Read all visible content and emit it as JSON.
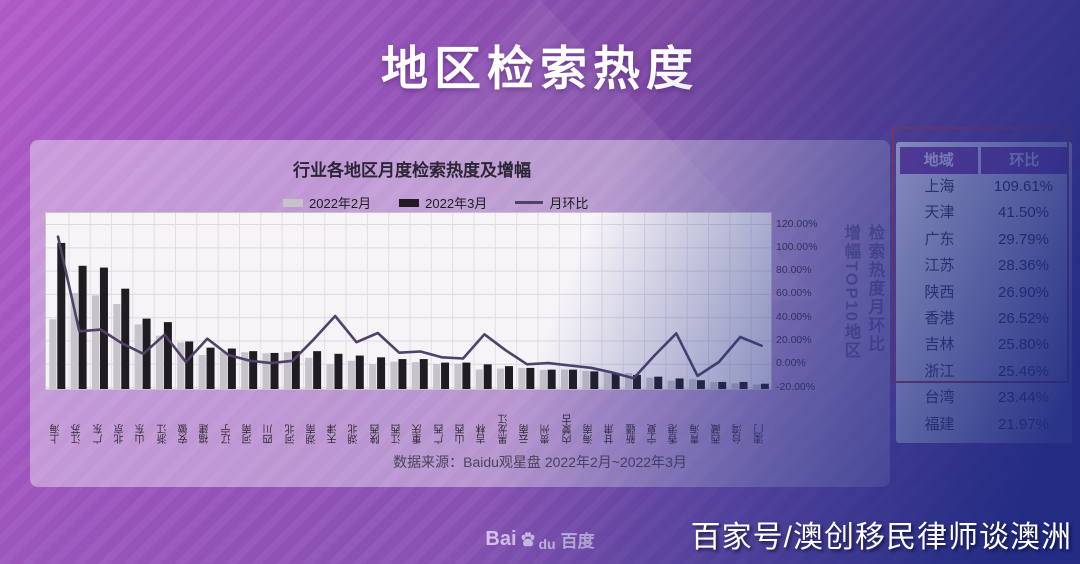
{
  "banner": {
    "title": "地区检索热度"
  },
  "chart": {
    "title": "行业各地区月度检索热度及增幅",
    "legend": [
      {
        "label": "2022年2月",
        "color": "#c7c3cb",
        "type": "bar"
      },
      {
        "label": "2022年3月",
        "color": "#201c22",
        "type": "bar"
      },
      {
        "label": "月环比",
        "color": "#4e4268",
        "type": "line"
      }
    ],
    "axis_caption_line1": "检索热度月环比",
    "axis_caption_line2": "增幅TOP10地区",
    "source": "数据来源：Baidu观星盘 2022年2月~2022年3月"
  },
  "chart_data": {
    "type": "bar+line (dual axis combo)",
    "title": "行业各地区月度检索热度及增幅",
    "categories": [
      "上海",
      "江苏",
      "广东",
      "北京",
      "山东",
      "浙江",
      "安徽",
      "福建",
      "辽宁",
      "河南",
      "四川",
      "河北",
      "湖南",
      "天津",
      "湖北",
      "陕西",
      "江西",
      "重庆",
      "广西",
      "山西",
      "吉林",
      "黑龙江",
      "云南",
      "贵州",
      "内蒙古",
      "海南",
      "甘肃",
      "新疆",
      "宁夏",
      "香港",
      "青海",
      "西藏",
      "台湾",
      "澳门"
    ],
    "series": [
      {
        "name": "2022年2月",
        "type": "bar",
        "color": "#c7c3cb",
        "axis": "left (unlabeled heat index, relative 0-100)",
        "values": [
          39.6,
          54.5,
          53.2,
          48.3,
          36.7,
          30.3,
          26.5,
          19.3,
          21.3,
          20.9,
          20.3,
          20.9,
          17.7,
          14.1,
          16,
          14.2,
          15.5,
          15.3,
          14.2,
          14.3,
          11.1,
          11.6,
          12,
          10.9,
          11.1,
          10.3,
          9.7,
          9.1,
          6.5,
          4.7,
          5.6,
          3.9,
          3.2,
          2.6
        ]
      },
      {
        "name": "2022年3月",
        "type": "bar",
        "color": "#201c22",
        "axis": "left (unlabeled heat index, relative 0-100)",
        "values": [
          83,
          70,
          69,
          57,
          40,
          38,
          27,
          23.5,
          23,
          21.5,
          20.5,
          21.5,
          21.5,
          20,
          19,
          18,
          17,
          17,
          15,
          15,
          14,
          13,
          12,
          11,
          11,
          10,
          9,
          8,
          7,
          6,
          5,
          4,
          4,
          3
        ]
      },
      {
        "name": "月环比",
        "type": "line",
        "color": "#4e4268",
        "axis": "right",
        "unit": "%",
        "values": [
          109.61,
          28.36,
          29.79,
          18,
          9,
          25.46,
          2,
          21.97,
          8,
          3,
          1,
          3,
          21.5,
          41.5,
          19,
          26.9,
          10,
          11,
          6,
          5,
          25.8,
          12,
          0,
          1,
          -1,
          -3,
          -7,
          -12,
          8,
          26.52,
          -10,
          2,
          23.44,
          16
        ]
      }
    ],
    "right_axis": {
      "min": -20,
      "max": 120,
      "ticks": [
        {
          "label": "120.00%",
          "value": 120
        },
        {
          "label": "100.00%",
          "value": 100
        },
        {
          "label": "80.00%",
          "value": 80
        },
        {
          "label": "60.00%",
          "value": 60
        },
        {
          "label": "40.00%",
          "value": 40
        },
        {
          "label": "20.00%",
          "value": 20
        },
        {
          "label": "0.00%",
          "value": 0
        },
        {
          "label": "-20.00%",
          "value": -20
        }
      ]
    },
    "grid": "on (square grid, light lavender)",
    "legend_position": "top, above plot",
    "note": "Bar values are relative heights estimated from pixels; left axis is unlabeled in the source image. Line values for top-10 regions match the side table."
  },
  "table": {
    "headers": [
      "地域",
      "环比"
    ],
    "header_bg": "#8841a7",
    "rows": [
      [
        "上海",
        "109.61%"
      ],
      [
        "天津",
        "41.50%"
      ],
      [
        "广东",
        "29.79%"
      ],
      [
        "江苏",
        "28.36%"
      ],
      [
        "陕西",
        "26.90%"
      ],
      [
        "香港",
        "26.52%"
      ],
      [
        "吉林",
        "25.80%"
      ],
      [
        "浙江",
        "25.46%"
      ],
      [
        "台湾",
        "23.44%"
      ],
      [
        "福建",
        "21.97%"
      ]
    ],
    "highlight_box_color": "#c93a3c"
  },
  "baidu_logo": {
    "prefix": "Bai",
    "mid": "du",
    "cn": "百度"
  },
  "watermark": {
    "text": "百家号/澳创移民律师谈澳洲"
  }
}
